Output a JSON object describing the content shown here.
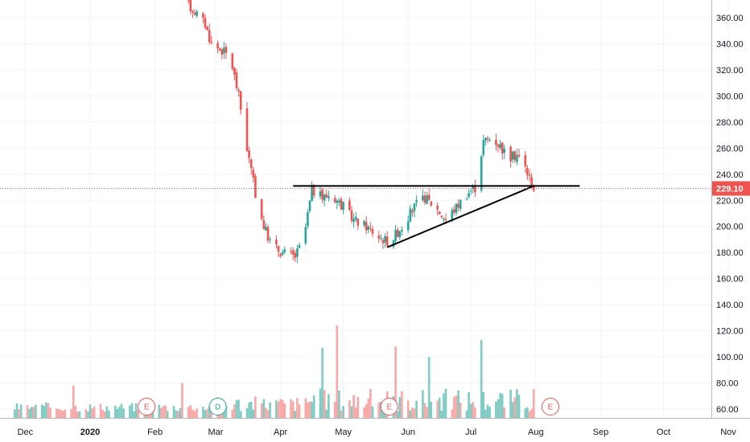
{
  "chart_data": {
    "type": "candlestick",
    "title": "",
    "y_axis": {
      "position": "right",
      "ticks": [
        "60.00",
        "80.00",
        "100.00",
        "120.00",
        "140.00",
        "160.00",
        "180.00",
        "200.00",
        "220.00",
        "240.00",
        "260.00",
        "280.00",
        "300.00",
        "320.00",
        "340.00",
        "360.00"
      ],
      "tick_values": [
        60,
        80,
        100,
        120,
        140,
        160,
        180,
        200,
        220,
        240,
        260,
        280,
        300,
        320,
        340,
        360
      ],
      "price_range": [
        160,
        365
      ]
    },
    "x_axis": {
      "labels": [
        "Dec",
        "2020",
        "Feb",
        "Mar",
        "Apr",
        "May",
        "Jun",
        "Jul",
        "Aug",
        "Sep",
        "Oct",
        "Nov"
      ],
      "label_dates": [
        "2019-12",
        "2020-01",
        "2020-02",
        "2020-03",
        "2020-04",
        "2020-05",
        "2020-06",
        "2020-07",
        "2020-08",
        "2020-09",
        "2020-10",
        "2020-11"
      ]
    },
    "last_price": {
      "label": "229.10",
      "value": 229.1,
      "color": "#ef5350"
    },
    "colors": {
      "up": "#26a69a",
      "down": "#ef5350",
      "up_volume": "#80cbc4",
      "down_volume": "#f7a9a7",
      "trendline": "#000000",
      "grid": "#f0f3fa"
    },
    "price_path": [
      {
        "date": "2020-02-15",
        "close": 372
      },
      {
        "date": "2020-02-20",
        "close": 365
      },
      {
        "date": "2020-02-25",
        "close": 355
      },
      {
        "date": "2020-02-28",
        "close": 340
      },
      {
        "date": "2020-03-04",
        "close": 335
      },
      {
        "date": "2020-03-08",
        "close": 330
      },
      {
        "date": "2020-03-12",
        "close": 300
      },
      {
        "date": "2020-03-16",
        "close": 260
      },
      {
        "date": "2020-03-20",
        "close": 225
      },
      {
        "date": "2020-03-24",
        "close": 200
      },
      {
        "date": "2020-03-28",
        "close": 185
      },
      {
        "date": "2020-04-02",
        "close": 180
      },
      {
        "date": "2020-04-08",
        "close": 177
      },
      {
        "date": "2020-04-12",
        "close": 190
      },
      {
        "date": "2020-04-16",
        "close": 228
      },
      {
        "date": "2020-04-21",
        "close": 222
      },
      {
        "date": "2020-04-25",
        "close": 225
      },
      {
        "date": "2020-05-01",
        "close": 215
      },
      {
        "date": "2020-05-06",
        "close": 205
      },
      {
        "date": "2020-05-12",
        "close": 200
      },
      {
        "date": "2020-05-18",
        "close": 192
      },
      {
        "date": "2020-05-23",
        "close": 188
      },
      {
        "date": "2020-05-29",
        "close": 200
      },
      {
        "date": "2020-06-04",
        "close": 215
      },
      {
        "date": "2020-06-09",
        "close": 222
      },
      {
        "date": "2020-06-14",
        "close": 215
      },
      {
        "date": "2020-06-19",
        "close": 205
      },
      {
        "date": "2020-06-24",
        "close": 215
      },
      {
        "date": "2020-06-29",
        "close": 225
      },
      {
        "date": "2020-07-03",
        "close": 230
      },
      {
        "date": "2020-07-07",
        "close": 265
      },
      {
        "date": "2020-07-11",
        "close": 268
      },
      {
        "date": "2020-07-15",
        "close": 262
      },
      {
        "date": "2020-07-19",
        "close": 252
      },
      {
        "date": "2020-07-23",
        "close": 255
      },
      {
        "date": "2020-07-27",
        "close": 245
      },
      {
        "date": "2020-07-31",
        "close": 229
      }
    ],
    "volume_spikes": [
      {
        "date": "2019-12-24",
        "value": 78,
        "dir": "down"
      },
      {
        "date": "2020-02-14",
        "value": 80,
        "dir": "down"
      },
      {
        "date": "2020-04-18",
        "value": 117,
        "dir": "up"
      },
      {
        "date": "2020-04-21",
        "value": 107,
        "dir": "up"
      },
      {
        "date": "2020-04-28",
        "value": 124,
        "dir": "down"
      },
      {
        "date": "2020-05-26",
        "value": 108,
        "dir": "down"
      },
      {
        "date": "2020-06-11",
        "value": 100,
        "dir": "up"
      },
      {
        "date": "2020-06-14",
        "value": 103,
        "dir": "up"
      },
      {
        "date": "2020-06-28",
        "value": 106,
        "dir": "down"
      },
      {
        "date": "2020-07-05",
        "value": 134,
        "dir": "up"
      },
      {
        "date": "2020-07-06",
        "value": 113,
        "dir": "up"
      }
    ],
    "trendlines": [
      {
        "name": "resistance",
        "from": {
          "date": "2020-04-07",
          "value": 231
        },
        "to": {
          "date": "2020-08-22",
          "value": 231
        }
      },
      {
        "name": "support",
        "from": {
          "date": "2020-05-22",
          "value": 184
        },
        "to": {
          "date": "2020-07-31",
          "value": 231
        }
      }
    ],
    "event_markers": [
      {
        "label": "E",
        "date": "2020-01-28",
        "color": "#ef5350"
      },
      {
        "label": "D",
        "date": "2020-03-02",
        "color": "#26a69a"
      },
      {
        "label": "E",
        "date": "2020-05-23",
        "color": "#ef5350"
      },
      {
        "label": "E",
        "date": "2020-08-08",
        "color": "#ef5350"
      }
    ]
  }
}
